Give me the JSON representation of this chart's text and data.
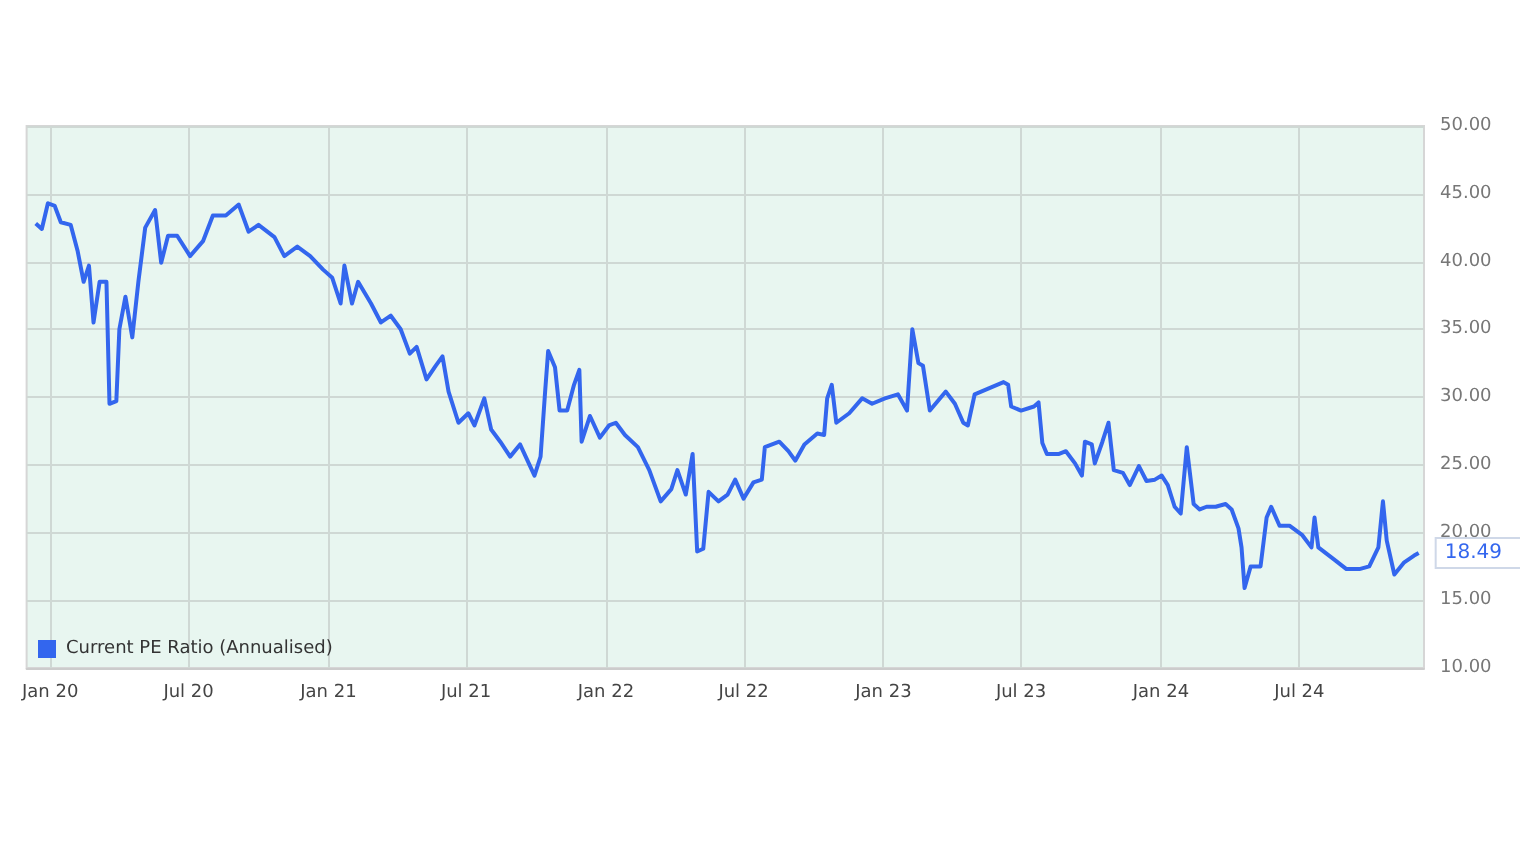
{
  "chart_data": {
    "type": "line",
    "legend": "bottom left",
    "grid": true,
    "marker": "none",
    "line_style": "solid",
    "xlim": [
      "2019-12-01",
      "2024-12-12"
    ],
    "xticks": [
      {
        "value": "2020-01-01",
        "label": "Jan 20"
      },
      {
        "value": "2020-07-01",
        "label": "Jul 20"
      },
      {
        "value": "2021-01-01",
        "label": "Jan 21"
      },
      {
        "value": "2021-07-01",
        "label": "Jul 21"
      },
      {
        "value": "2022-01-01",
        "label": "Jan 22"
      },
      {
        "value": "2022-07-01",
        "label": "Jul 22"
      },
      {
        "value": "2023-01-01",
        "label": "Jan 23"
      },
      {
        "value": "2023-07-01",
        "label": "Jul 23"
      },
      {
        "value": "2024-01-01",
        "label": "Jan 24"
      },
      {
        "value": "2024-07-01",
        "label": "Jul 24"
      }
    ],
    "ylim": [
      10,
      50
    ],
    "yticks": [
      {
        "value": 10,
        "label": "10.00"
      },
      {
        "value": 15,
        "label": "15.00"
      },
      {
        "value": 20,
        "label": "20.00"
      },
      {
        "value": 25,
        "label": "25.00"
      },
      {
        "value": 30,
        "label": "30.00"
      },
      {
        "value": 35,
        "label": "35.00"
      },
      {
        "value": 40,
        "label": "40.00"
      },
      {
        "value": 45,
        "label": "45.00"
      },
      {
        "value": 50,
        "label": "50.00"
      }
    ],
    "x": [
      "2019-12-13",
      "2019-12-21",
      "2019-12-29",
      "2020-01-07",
      "2020-01-15",
      "2020-01-28",
      "2020-02-06",
      "2020-02-14",
      "2020-02-21",
      "2020-02-27",
      "2020-03-06",
      "2020-03-15",
      "2020-03-19",
      "2020-03-28",
      "2020-04-01",
      "2020-04-09",
      "2020-04-18",
      "2020-04-26",
      "2020-05-05",
      "2020-05-18",
      "2020-05-26",
      "2020-06-04",
      "2020-06-16",
      "2020-07-03",
      "2020-07-20",
      "2020-08-02",
      "2020-08-19",
      "2020-09-05",
      "2020-09-18",
      "2020-10-01",
      "2020-10-22",
      "2020-11-04",
      "2020-11-21",
      "2020-12-08",
      "2020-12-25",
      "2021-01-06",
      "2021-01-17",
      "2021-01-22",
      "2021-02-01",
      "2021-02-09",
      "2021-02-26",
      "2021-03-11",
      "2021-03-24",
      "2021-04-06",
      "2021-04-18",
      "2021-04-27",
      "2021-05-10",
      "2021-05-22",
      "2021-05-31",
      "2021-06-08",
      "2021-06-21",
      "2021-07-04",
      "2021-07-12",
      "2021-07-25",
      "2021-08-03",
      "2021-08-15",
      "2021-08-28",
      "2021-09-10",
      "2021-09-29",
      "2021-10-07",
      "2021-10-13",
      "2021-10-17",
      "2021-10-26",
      "2021-11-01",
      "2021-11-11",
      "2021-11-20",
      "2021-11-27",
      "2021-11-30",
      "2021-12-11",
      "2021-12-24",
      "2022-01-05",
      "2022-01-14",
      "2022-01-26",
      "2022-02-12",
      "2022-02-27",
      "2022-03-14",
      "2022-03-28",
      "2022-04-05",
      "2022-04-16",
      "2022-04-25",
      "2022-05-01",
      "2022-05-09",
      "2022-05-16",
      "2022-05-29",
      "2022-06-10",
      "2022-06-20",
      "2022-07-01",
      "2022-07-14",
      "2022-07-25",
      "2022-07-29",
      "2022-08-17",
      "2022-08-29",
      "2022-09-07",
      "2022-09-19",
      "2022-10-06",
      "2022-10-15",
      "2022-10-19",
      "2022-10-25",
      "2022-10-31",
      "2022-11-17",
      "2022-12-04",
      "2022-12-17",
      "2023-01-03",
      "2023-01-20",
      "2023-02-01",
      "2023-02-08",
      "2023-02-16",
      "2023-02-22",
      "2023-03-03",
      "2023-03-24",
      "2023-04-05",
      "2023-04-16",
      "2023-04-22",
      "2023-05-01",
      "2023-05-18",
      "2023-06-08",
      "2023-06-14",
      "2023-06-18",
      "2023-07-01",
      "2023-07-18",
      "2023-07-24",
      "2023-07-29",
      "2023-08-04",
      "2023-08-20",
      "2023-08-29",
      "2023-09-10",
      "2023-09-19",
      "2023-09-23",
      "2023-10-02",
      "2023-10-06",
      "2023-10-16",
      "2023-10-24",
      "2023-10-31",
      "2023-11-12",
      "2023-11-21",
      "2023-12-03",
      "2023-12-13",
      "2023-12-24",
      "2024-01-02",
      "2024-01-10",
      "2024-01-19",
      "2024-01-27",
      "2024-02-04",
      "2024-02-13",
      "2024-02-21",
      "2024-03-01",
      "2024-03-13",
      "2024-03-26",
      "2024-04-03",
      "2024-04-12",
      "2024-04-16",
      "2024-04-20",
      "2024-04-28",
      "2024-05-11",
      "2024-05-19",
      "2024-05-25",
      "2024-06-05",
      "2024-06-18",
      "2024-07-05",
      "2024-07-17",
      "2024-07-21",
      "2024-07-26",
      "2024-08-16",
      "2024-09-01",
      "2024-09-18",
      "2024-10-01",
      "2024-10-13",
      "2024-10-19",
      "2024-10-24",
      "2024-11-03",
      "2024-11-16",
      "2024-11-29",
      "2024-12-05"
    ],
    "series": [
      {
        "name": "Current PE Ratio (Annualised)",
        "color": "#3366ee",
        "values": [
          42.8,
          42.4,
          44.3,
          44.1,
          42.9,
          42.7,
          40.8,
          38.5,
          39.7,
          35.5,
          38.5,
          38.5,
          29.5,
          29.7,
          35,
          37.4,
          34.4,
          38.5,
          42.5,
          43.8,
          39.9,
          41.9,
          41.9,
          40.4,
          41.5,
          43.4,
          43.4,
          44.2,
          42.2,
          42.7,
          41.8,
          40.4,
          41.1,
          40.4,
          39.4,
          38.8,
          36.9,
          39.7,
          36.9,
          38.5,
          36.9,
          35.5,
          36,
          35,
          33.2,
          33.7,
          31.3,
          32.3,
          33,
          30.4,
          28.1,
          28.8,
          27.9,
          29.9,
          27.6,
          26.7,
          25.6,
          26.5,
          24.2,
          25.6,
          30.4,
          33.4,
          32.2,
          29,
          29,
          30.9,
          32,
          26.7,
          28.6,
          27,
          27.9,
          28.1,
          27.2,
          26.3,
          24.6,
          22.3,
          23.2,
          24.6,
          22.8,
          25.8,
          18.6,
          18.8,
          23,
          22.3,
          22.8,
          23.9,
          22.5,
          23.7,
          23.9,
          26.3,
          26.7,
          26,
          25.3,
          26.5,
          27.3,
          27.2,
          29.9,
          30.9,
          28.1,
          28.8,
          29.9,
          29.5,
          29.9,
          30.2,
          29,
          35,
          32.5,
          32.3,
          29,
          30.4,
          29.5,
          28.1,
          27.9,
          30.2,
          30.6,
          31.1,
          30.9,
          29.3,
          29,
          29.3,
          29.6,
          26.6,
          25.8,
          25.8,
          26,
          25.1,
          24.2,
          26.7,
          26.5,
          25.1,
          26.7,
          28.1,
          24.6,
          24.4,
          23.5,
          24.9,
          23.8,
          23.9,
          24.2,
          23.5,
          21.9,
          21.4,
          26.3,
          22.1,
          21.7,
          21.9,
          21.9,
          22.1,
          21.7,
          20.3,
          18.9,
          15.9,
          17.5,
          17.5,
          21.1,
          21.9,
          20.5,
          20.5,
          19.8,
          18.9,
          21.1,
          18.9,
          18,
          17.3,
          17.3,
          17.5,
          18.9,
          22.3,
          19.4,
          16.9,
          17.8,
          18.3,
          18.49
        ]
      }
    ],
    "annotations": [
      {
        "text": "18.49",
        "x": "2024-12-05",
        "y": 18.49
      }
    ]
  }
}
